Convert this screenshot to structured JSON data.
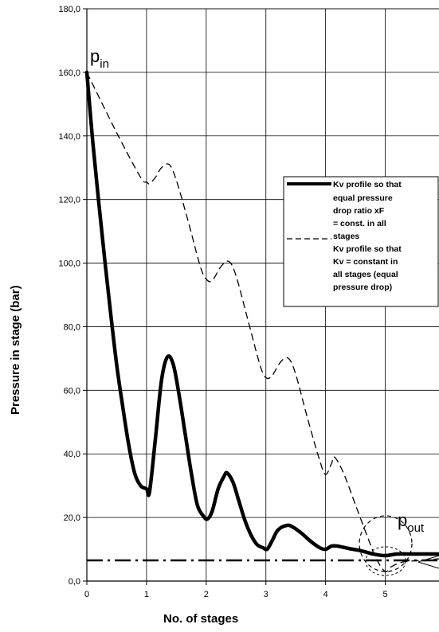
{
  "chart_data": {
    "type": "line",
    "title": "",
    "xlabel": "No. of stages",
    "ylabel": "Pressure in stage (bar)",
    "xlim": [
      0,
      5.9
    ],
    "ylim": [
      0,
      180
    ],
    "x_ticks": [
      "0",
      "1",
      "2",
      "3",
      "4",
      "5"
    ],
    "y_ticks": [
      "0,0",
      "20,0",
      "40,0",
      "60,0",
      "80,0",
      "100,0",
      "120,0",
      "140,0",
      "160,0",
      "180,0"
    ],
    "grid": true,
    "legend_position": "right",
    "series": [
      {
        "name": "Kv profile so that equal pressure drop ratio xF = const. in all stages",
        "style": "solid-thick",
        "x": [
          0,
          0.1,
          0.2,
          0.3,
          0.4,
          0.5,
          0.6,
          0.7,
          0.8,
          0.9,
          1.0,
          1.05,
          1.15,
          1.25,
          1.35,
          1.45,
          1.55,
          1.65,
          1.75,
          1.85,
          1.95,
          2.02,
          2.1,
          2.2,
          2.3,
          2.35,
          2.45,
          2.55,
          2.65,
          2.75,
          2.85,
          2.95,
          3.02,
          3.1,
          3.2,
          3.35,
          3.45,
          3.6,
          3.75,
          3.9,
          4.0,
          4.1,
          4.2,
          4.4,
          4.6,
          4.8,
          5.0,
          5.2,
          5.5,
          5.9
        ],
        "y": [
          160,
          138,
          119,
          101,
          84,
          68,
          55,
          43,
          34,
          30,
          29,
          28,
          45,
          63,
          70.5,
          68,
          58,
          46,
          34,
          24,
          20.5,
          19.5,
          22,
          29,
          33,
          34,
          31,
          25,
          19,
          14.5,
          11.5,
          10.5,
          10,
          12.5,
          16,
          17.5,
          17,
          15,
          12.5,
          10.5,
          10,
          11,
          11,
          10.2,
          9.5,
          8.5,
          8,
          8.5,
          8.5,
          8.5
        ]
      },
      {
        "name": "Kv profile so that Kv = constant in all stages (equal pressure drop)",
        "style": "dashed",
        "x": [
          0,
          0.5,
          0.9,
          1.0,
          1.05,
          1.15,
          1.25,
          1.38,
          1.5,
          1.7,
          1.9,
          2.0,
          2.1,
          2.25,
          2.38,
          2.5,
          2.7,
          2.9,
          3.0,
          3.1,
          3.25,
          3.38,
          3.5,
          3.7,
          3.9,
          4.0,
          4.1,
          4.15,
          4.3,
          4.5,
          4.7,
          4.85,
          5.0,
          5.1,
          5.3,
          5.6,
          5.9
        ],
        "y": [
          160,
          141,
          127,
          125.5,
          125,
          127,
          130,
          131,
          126,
          113,
          99,
          95,
          94.5,
          99,
          100.5,
          96,
          82,
          68,
          64,
          64.5,
          69,
          70,
          65,
          51,
          38,
          33.5,
          37,
          39,
          34,
          24,
          14,
          7,
          3,
          4.5,
          6,
          6.5,
          7
        ]
      },
      {
        "name": "",
        "style": "dash-dot",
        "x": [
          0,
          5.9
        ],
        "y": [
          6.5,
          6.5
        ]
      }
    ],
    "annotations": [
      {
        "text": "p",
        "sub": "in"
      },
      {
        "text": "p",
        "sub": "out"
      }
    ]
  },
  "legend": {
    "line1": [
      "Kv profile so that",
      "equal pressure",
      "drop ratio xF",
      "= const. in all",
      "stages"
    ],
    "line2": [
      "Kv profile so that",
      "Kv = constant in",
      "all stages (equal",
      "pressure drop)"
    ]
  }
}
